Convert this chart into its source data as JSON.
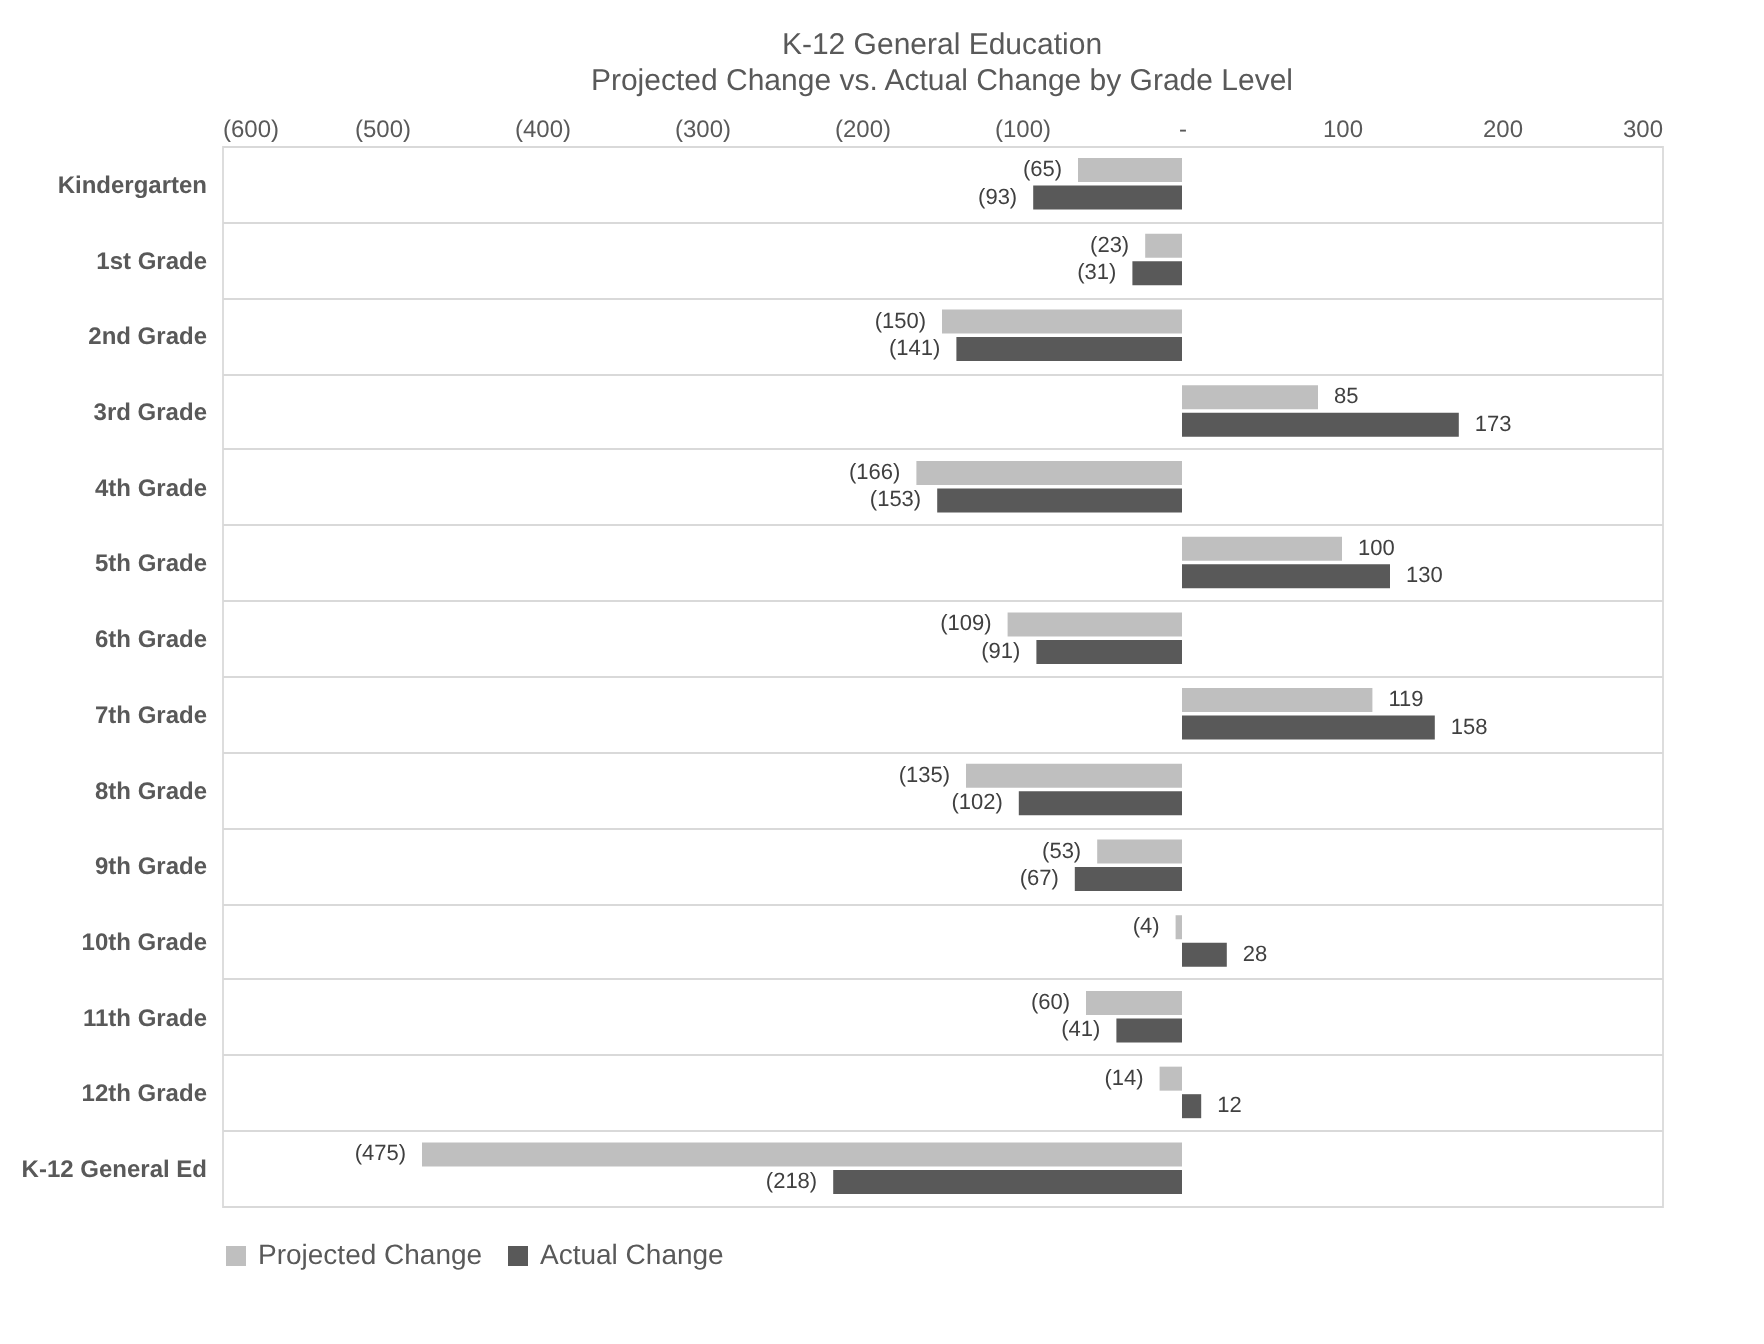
{
  "chart_data": {
    "type": "bar",
    "orientation": "horizontal",
    "title": "K-12 General Education",
    "subtitle": "Projected Change vs. Actual Change by Grade Level",
    "categories": [
      "Kindergarten",
      "1st Grade",
      "2nd Grade",
      "3rd Grade",
      "4th Grade",
      "5th Grade",
      "6th Grade",
      "7th Grade",
      "8th Grade",
      "9th Grade",
      "10th Grade",
      "11th Grade",
      "12th Grade",
      "K-12 General Ed"
    ],
    "series": [
      {
        "name": "Projected Change",
        "color": "#bfbfbf",
        "values": [
          -65,
          -23,
          -150,
          85,
          -166,
          100,
          -109,
          119,
          -135,
          -53,
          -4,
          -60,
          -14,
          -475
        ],
        "value_labels": [
          "(65)",
          "(23)",
          "(150)",
          "85",
          "(166)",
          "100",
          "(109)",
          "119",
          "(135)",
          "(53)",
          "(4)",
          "(60)",
          "(14)",
          "(475)"
        ]
      },
      {
        "name": "Actual Change",
        "color": "#595959",
        "values": [
          -93,
          -31,
          -141,
          173,
          -153,
          130,
          -91,
          158,
          -102,
          -67,
          28,
          -41,
          12,
          -218
        ],
        "value_labels": [
          "(93)",
          "(31)",
          "(141)",
          "173",
          "(153)",
          "130",
          "(91)",
          "158",
          "(102)",
          "(67)",
          "28",
          "(41)",
          "12",
          "(218)"
        ]
      }
    ],
    "xlim": [
      -600,
      300
    ],
    "xticks": [
      {
        "value": -600,
        "label": "(600)"
      },
      {
        "value": -500,
        "label": "(500)"
      },
      {
        "value": -400,
        "label": "(400)"
      },
      {
        "value": -300,
        "label": "(300)"
      },
      {
        "value": -200,
        "label": "(200)"
      },
      {
        "value": -100,
        "label": "(100)"
      },
      {
        "value": 0,
        "label": "-"
      },
      100,
      200,
      300
    ],
    "grid": "y",
    "legend": "bottom"
  }
}
